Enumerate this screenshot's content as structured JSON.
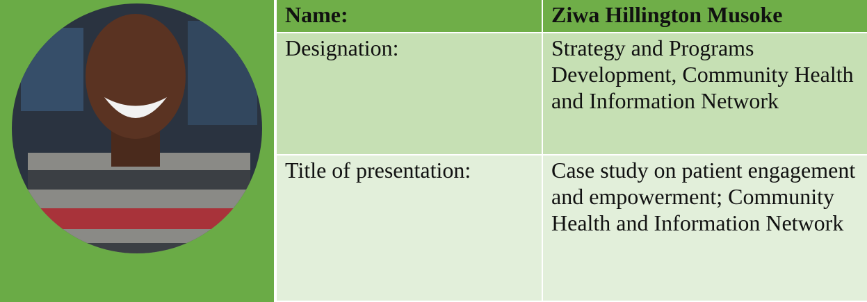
{
  "table": {
    "rows": [
      [
        "Name:",
        "Ziwa Hillington Musoke"
      ],
      [
        "Designation:",
        "Strategy and Programs Development, Community Health and Information Network"
      ],
      [
        "Title of presentation:",
        "Case study on patient engagement and empowerment; Community Health and Information Network"
      ]
    ]
  }
}
